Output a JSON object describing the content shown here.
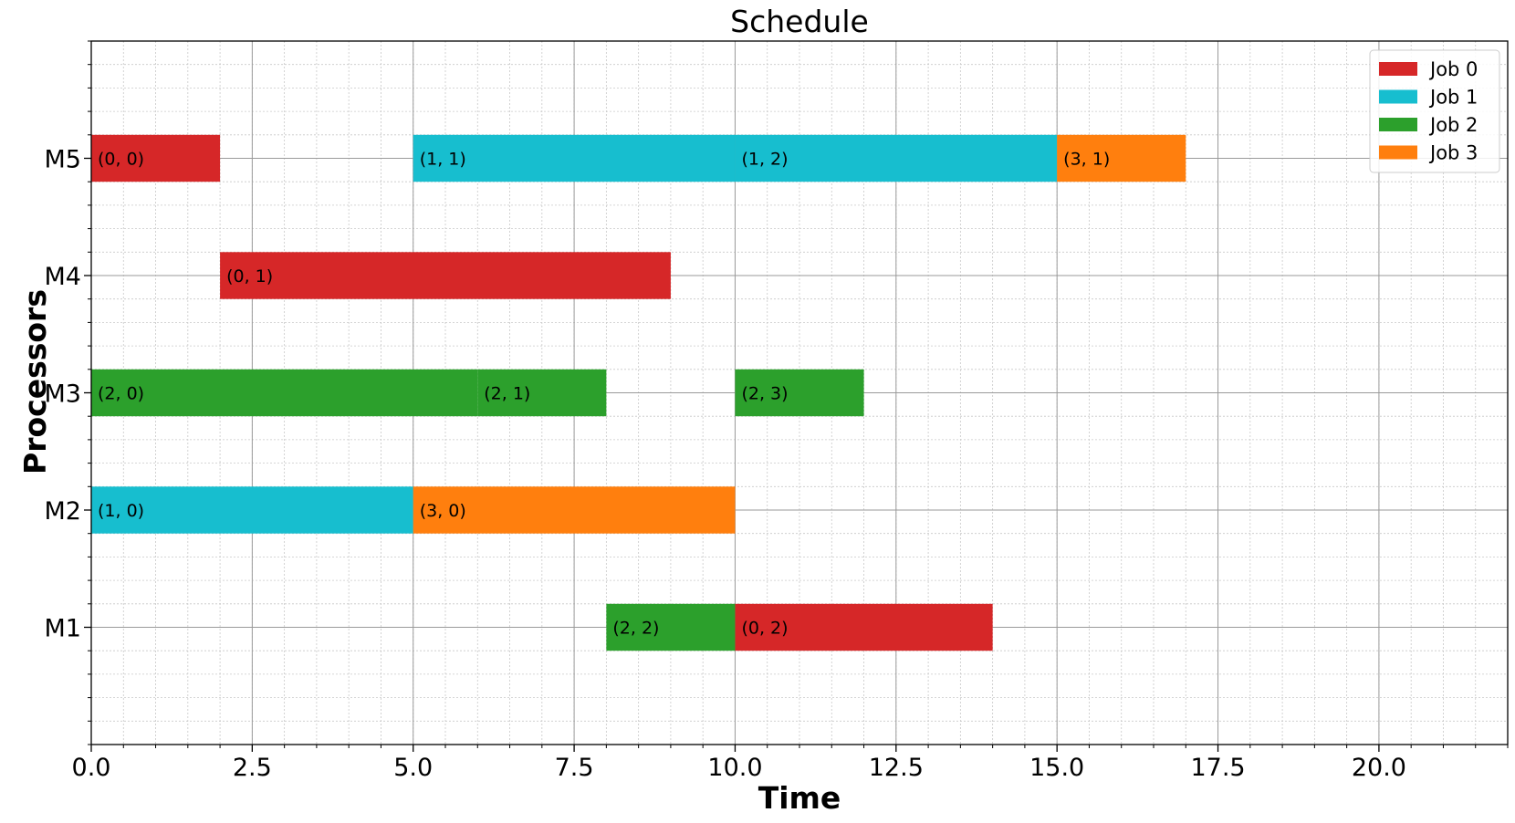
{
  "chart_data": {
    "type": "gantt",
    "title": "Schedule",
    "xlabel": "Time",
    "ylabel": "Processors",
    "xlim": [
      0,
      22
    ],
    "xticks": [
      0,
      2.5,
      5,
      7.5,
      10,
      12.5,
      15,
      17.5,
      20
    ],
    "xtick_labels": [
      "0.0",
      "2.5",
      "5.0",
      "7.5",
      "10.0",
      "12.5",
      "15.0",
      "17.5",
      "20.0"
    ],
    "categories": [
      "M1",
      "M2",
      "M3",
      "M4",
      "M5"
    ],
    "grid": true,
    "legend": {
      "placement": "top-right",
      "entries": [
        {
          "name": "Job 0",
          "color": "#d62728"
        },
        {
          "name": "Job 1",
          "color": "#17becf"
        },
        {
          "name": "Job 2",
          "color": "#2ca02c"
        },
        {
          "name": "Job 3",
          "color": "#ff7f0e"
        }
      ]
    },
    "tasks": [
      {
        "processor": "M5",
        "job": 0,
        "start": 0,
        "end": 2,
        "label": "(0, 0)"
      },
      {
        "processor": "M4",
        "job": 0,
        "start": 2,
        "end": 9,
        "label": "(0, 1)"
      },
      {
        "processor": "M1",
        "job": 0,
        "start": 10,
        "end": 14,
        "label": "(0, 2)"
      },
      {
        "processor": "M2",
        "job": 1,
        "start": 0,
        "end": 5,
        "label": "(1, 0)"
      },
      {
        "processor": "M5",
        "job": 1,
        "start": 5,
        "end": 10,
        "label": "(1, 1)"
      },
      {
        "processor": "M5",
        "job": 1,
        "start": 10,
        "end": 15,
        "label": "(1, 2)"
      },
      {
        "processor": "M3",
        "job": 2,
        "start": 0,
        "end": 6,
        "label": "(2, 0)"
      },
      {
        "processor": "M3",
        "job": 2,
        "start": 6,
        "end": 8,
        "label": "(2, 1)"
      },
      {
        "processor": "M1",
        "job": 2,
        "start": 8,
        "end": 10,
        "label": "(2, 2)"
      },
      {
        "processor": "M3",
        "job": 2,
        "start": 10,
        "end": 12,
        "label": "(2, 3)"
      },
      {
        "processor": "M2",
        "job": 3,
        "start": 5,
        "end": 10,
        "label": "(3, 0)"
      },
      {
        "processor": "M5",
        "job": 3,
        "start": 15,
        "end": 17,
        "label": "(3, 1)"
      }
    ]
  }
}
